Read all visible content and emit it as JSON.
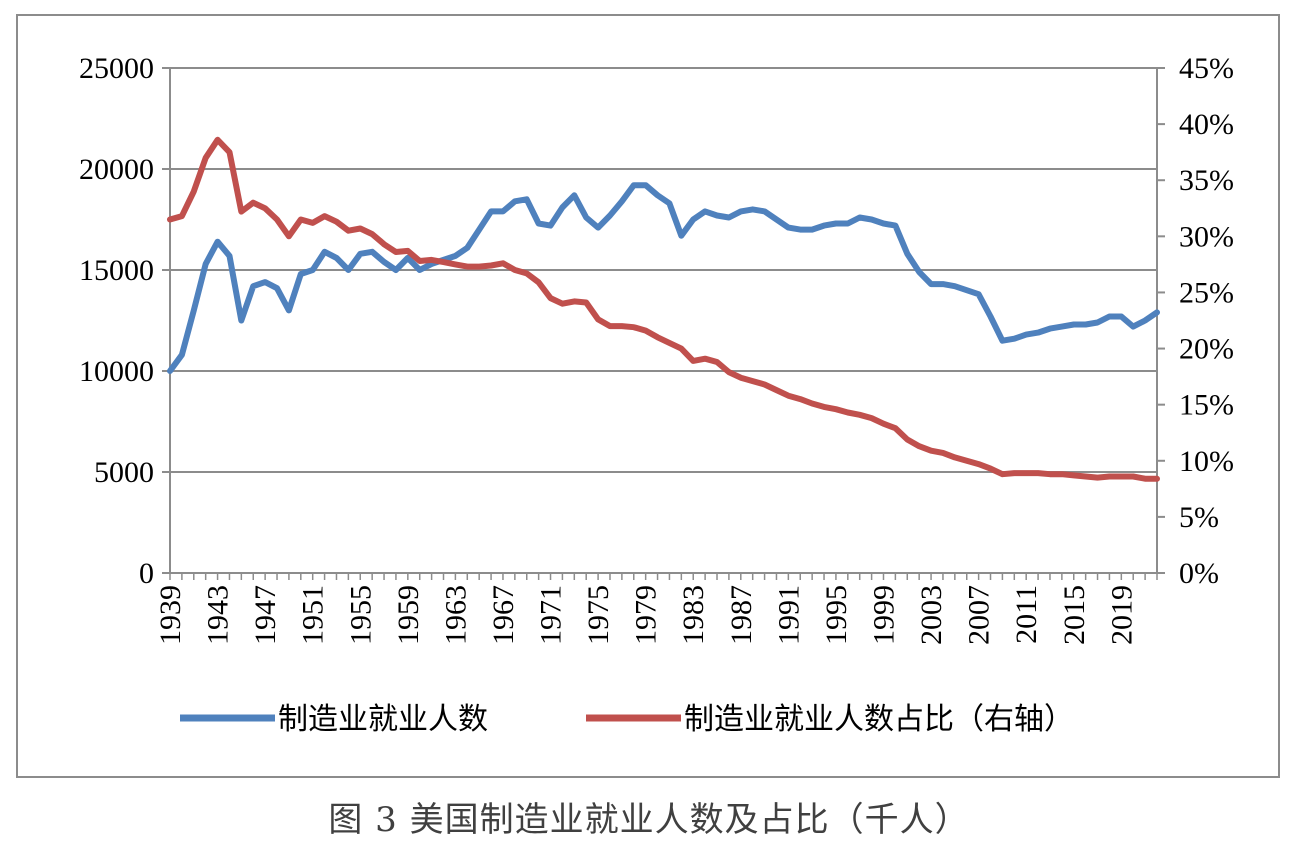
{
  "caption": "图 3  美国制造业就业人数及占比（千人）",
  "chart_data": {
    "type": "line",
    "title": "",
    "xlabel": "",
    "ylabel": "",
    "xlim": [
      1939,
      2022
    ],
    "ylim_left": [
      0,
      25000
    ],
    "ylim_right": [
      0,
      45
    ],
    "y_ticks_left": [
      "0",
      "5000",
      "10000",
      "15000",
      "20000",
      "25000"
    ],
    "y_ticks_right": [
      "0%",
      "5%",
      "10%",
      "15%",
      "20%",
      "25%",
      "30%",
      "35%",
      "40%",
      "45%"
    ],
    "x_tick_labels": [
      "1939",
      "1943",
      "1947",
      "1951",
      "1955",
      "1959",
      "1963",
      "1967",
      "1971",
      "1975",
      "1979",
      "1983",
      "1987",
      "1991",
      "1995",
      "1999",
      "2003",
      "2007",
      "2011",
      "2015",
      "2019"
    ],
    "grid": "horizontal",
    "legend_position": "bottom",
    "x": [
      1939,
      1940,
      1941,
      1942,
      1943,
      1944,
      1945,
      1946,
      1947,
      1948,
      1949,
      1950,
      1951,
      1952,
      1953,
      1954,
      1955,
      1956,
      1957,
      1958,
      1959,
      1960,
      1961,
      1962,
      1963,
      1964,
      1965,
      1966,
      1967,
      1968,
      1969,
      1970,
      1971,
      1972,
      1973,
      1974,
      1975,
      1976,
      1977,
      1978,
      1979,
      1980,
      1981,
      1982,
      1983,
      1984,
      1985,
      1986,
      1987,
      1988,
      1989,
      1990,
      1991,
      1992,
      1993,
      1994,
      1995,
      1996,
      1997,
      1998,
      1999,
      2000,
      2001,
      2002,
      2003,
      2004,
      2005,
      2006,
      2007,
      2008,
      2009,
      2010,
      2011,
      2012,
      2013,
      2014,
      2015,
      2016,
      2017,
      2018,
      2019,
      2020,
      2021,
      2022
    ],
    "series": [
      {
        "name": "制造业就业人数",
        "axis": "left",
        "color": "#4f81bd",
        "values": [
          10000,
          10800,
          13000,
          15300,
          16400,
          15700,
          12500,
          14200,
          14400,
          14100,
          13000,
          14800,
          15000,
          15900,
          15600,
          15000,
          15800,
          15900,
          15400,
          15000,
          15600,
          15000,
          15300,
          15500,
          15700,
          16100,
          17000,
          17900,
          17900,
          18400,
          18500,
          17300,
          17200,
          18100,
          18700,
          17600,
          17100,
          17700,
          18400,
          19200,
          19200,
          18700,
          18300,
          16700,
          17500,
          17900,
          17700,
          17600,
          17900,
          18000,
          17900,
          17500,
          17100,
          17000,
          17000,
          17200,
          17300,
          17300,
          17600,
          17500,
          17300,
          17200,
          15800,
          14900,
          14300,
          14300,
          14200,
          14000,
          13800,
          12700,
          11500,
          11600,
          11800,
          11900,
          12100,
          12200,
          12300,
          12300,
          12400,
          12700,
          12700,
          12200,
          12500,
          12900
        ]
      },
      {
        "name": "制造业就业人数占比（右轴）",
        "axis": "right",
        "color": "#c0504d",
        "values": [
          31.5,
          31.8,
          34.0,
          37.0,
          38.6,
          37.5,
          32.2,
          33.0,
          32.5,
          31.5,
          30.0,
          31.5,
          31.2,
          31.8,
          31.3,
          30.5,
          30.7,
          30.2,
          29.3,
          28.6,
          28.7,
          27.8,
          27.9,
          27.7,
          27.5,
          27.3,
          27.3,
          27.4,
          27.6,
          27.0,
          26.7,
          25.9,
          24.5,
          24.0,
          24.2,
          24.1,
          22.6,
          22.0,
          22.0,
          21.9,
          21.6,
          21.0,
          20.5,
          20.0,
          18.9,
          19.1,
          18.8,
          17.9,
          17.4,
          17.1,
          16.8,
          16.3,
          15.8,
          15.5,
          15.1,
          14.8,
          14.6,
          14.3,
          14.1,
          13.8,
          13.3,
          12.9,
          11.9,
          11.3,
          10.9,
          10.7,
          10.3,
          10.0,
          9.7,
          9.3,
          8.8,
          8.9,
          8.9,
          8.9,
          8.8,
          8.8,
          8.7,
          8.6,
          8.5,
          8.6,
          8.6,
          8.6,
          8.4,
          8.4
        ]
      }
    ]
  }
}
